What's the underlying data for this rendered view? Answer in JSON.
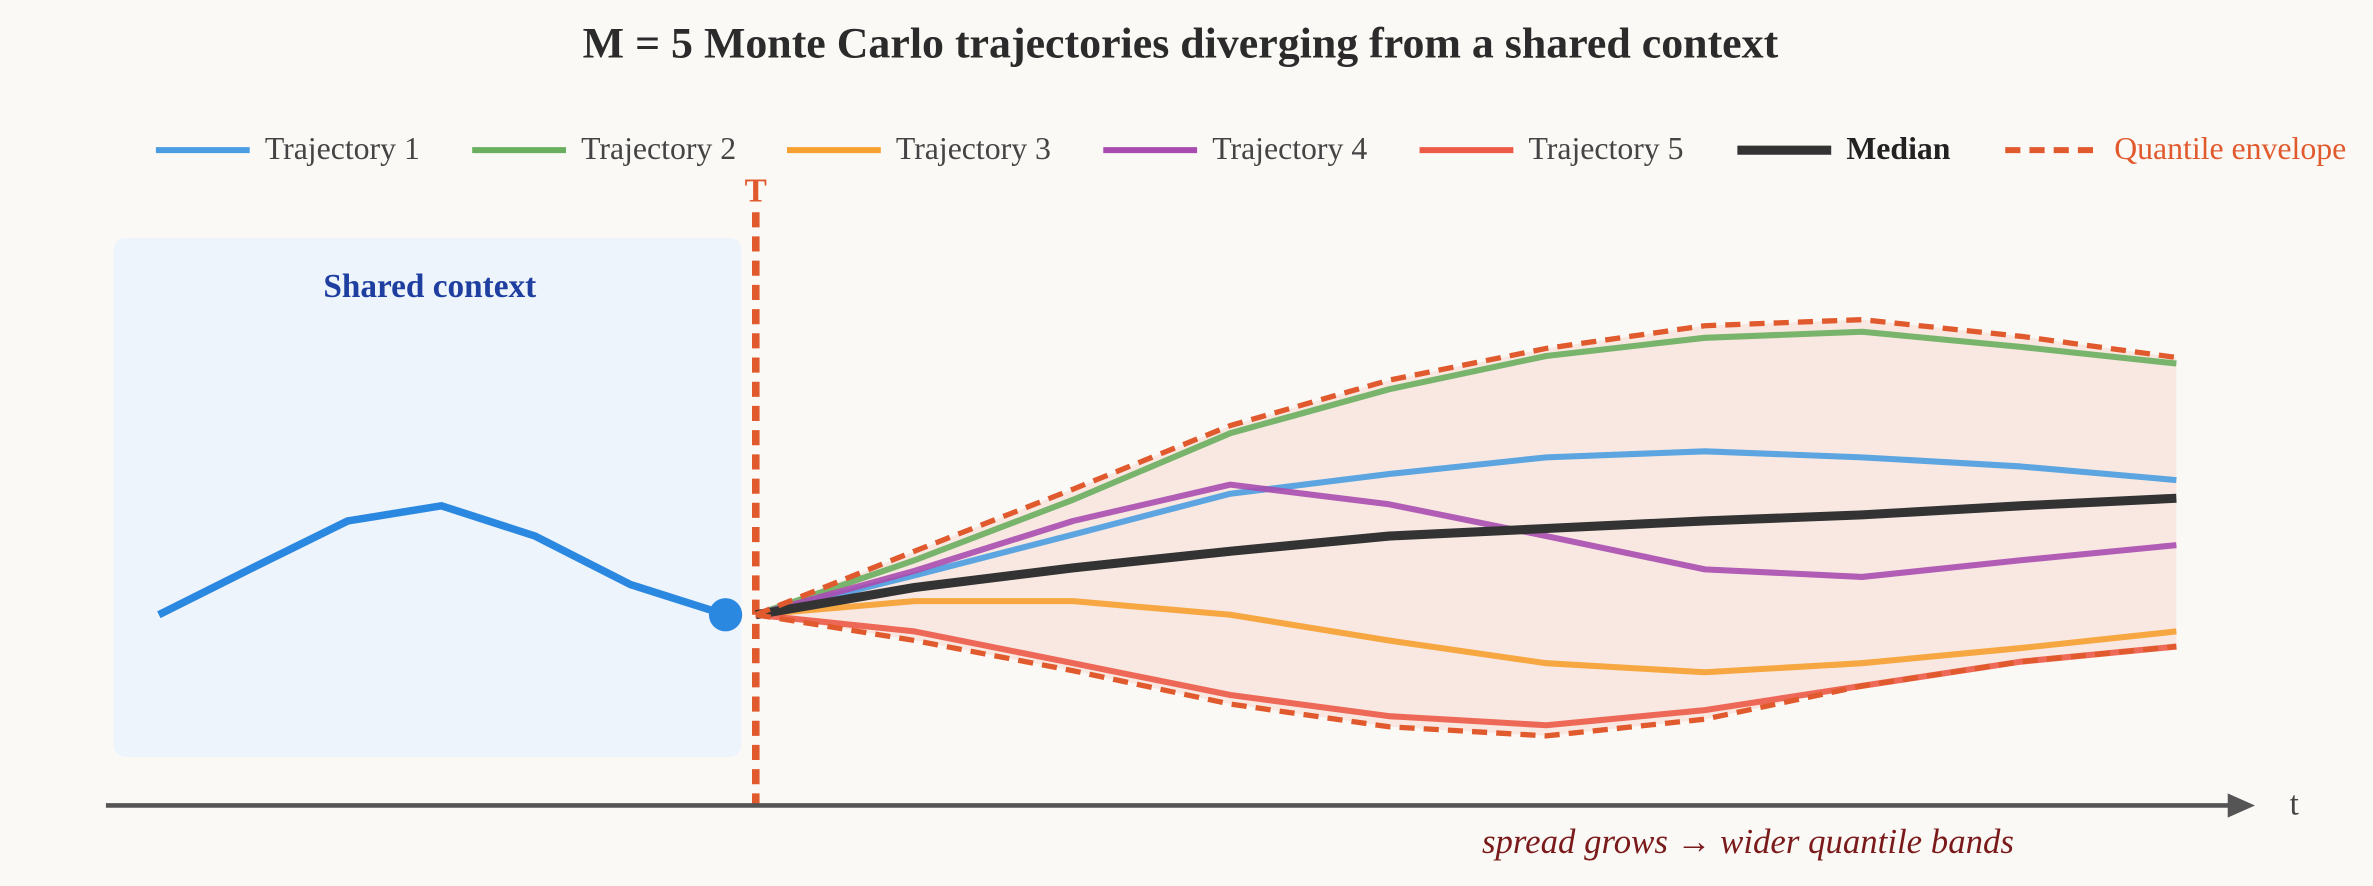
{
  "chart_data": {
    "type": "line",
    "title": "M = 5 Monte Carlo trajectories diverging from a shared context",
    "context": {
      "label": "Shared context",
      "color": "#2a88e0",
      "x": [
        -39.5,
        -33.3,
        -27,
        -20.8,
        -14.6,
        -8.3,
        -2
      ],
      "values": [
        12.6,
        15.7,
        18.8,
        19.8,
        17.8,
        14.6,
        12.6
      ]
    },
    "x": [
      0,
      10.5,
      21,
      31.4,
      41.9,
      52.3,
      62.8,
      73.2,
      83.7,
      94
    ],
    "series": [
      {
        "name": "Trajectory 1",
        "color": "#4a9de0",
        "values": [
          12.6,
          15.2,
          17.9,
          20.6,
          21.9,
          23,
          23.4,
          23,
          22.4,
          21.5
        ]
      },
      {
        "name": "Trajectory 2",
        "color": "#6aae5f",
        "values": [
          12.6,
          16.2,
          20.2,
          24.6,
          27.5,
          29.7,
          30.9,
          31.3,
          30.3,
          29.2
        ]
      },
      {
        "name": "Trajectory 3",
        "color": "#f6a030",
        "values": [
          12.6,
          13.5,
          13.5,
          12.6,
          10.9,
          9.4,
          8.8,
          9.4,
          10.4,
          11.5
        ]
      },
      {
        "name": "Trajectory 4",
        "color": "#a84cb0",
        "values": [
          12.6,
          15.5,
          18.8,
          21.2,
          19.9,
          17.8,
          15.6,
          15.1,
          16.2,
          17.2
        ]
      },
      {
        "name": "Trajectory 5",
        "color": "#ec5a48",
        "values": [
          12.6,
          11.5,
          9.4,
          7.3,
          5.9,
          5.3,
          6.3,
          7.9,
          9.5,
          10.5
        ]
      },
      {
        "name": "Median",
        "color": "#333333",
        "values": [
          12.6,
          14.4,
          15.7,
          16.8,
          17.8,
          18.3,
          18.8,
          19.2,
          19.8,
          20.3
        ]
      }
    ],
    "envelope": {
      "name": "Quantile envelope",
      "color": "#e05a2e",
      "upper": [
        12.6,
        16.8,
        20.9,
        25.1,
        28.1,
        30.2,
        31.7,
        32.1,
        31,
        29.6
      ],
      "lower": [
        12.6,
        10.9,
        8.9,
        6.7,
        5.2,
        4.6,
        5.7,
        7.9,
        9.5,
        10.5
      ]
    },
    "split": {
      "label": "T",
      "x": 0
    },
    "xlabel": "t",
    "annotation": "spread grows → wider quantile bands",
    "xlim": [
      -43,
      99.2
    ],
    "ylim": [
      0,
      38
    ]
  }
}
